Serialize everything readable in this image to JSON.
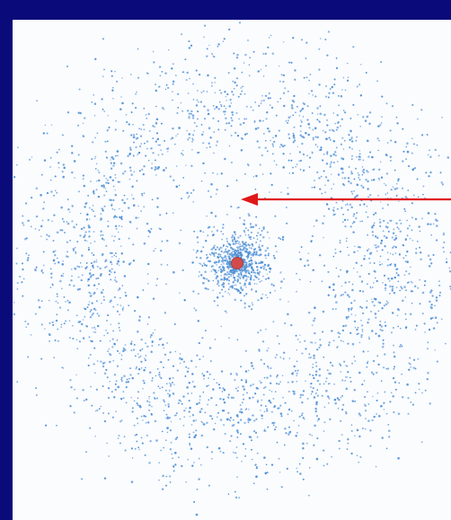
{
  "diagram": {
    "description_kind": "electron-probability-cloud",
    "colors": {
      "slide_background": "#0a0a7a",
      "panel_background": "#fbfcfe",
      "electron_dots": "#4f90d6",
      "nucleus": "#d24b4b",
      "arrow": "#e01818"
    },
    "dot_seed": 7,
    "density": {
      "inner_cloud_fraction": 0.24,
      "outer_shell_fraction": 0.6,
      "gap_fraction": 0.04,
      "halo_fraction": 0.12
    },
    "arrow": {
      "points_to": "nodal-gap",
      "direction": "right-to-left"
    },
    "nucleus": {
      "label": ""
    }
  }
}
